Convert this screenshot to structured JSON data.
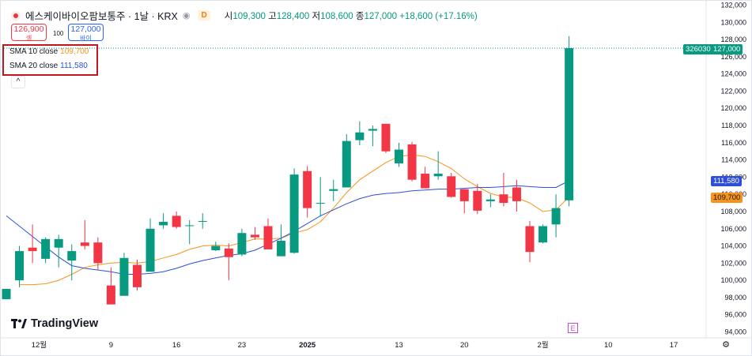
{
  "header": {
    "symbol": "에스케이바이오팜보통주 · 1날 · KRX",
    "eye_icon": "eye-icon",
    "badge": "D",
    "ohlc": {
      "open_label": "시",
      "open": "109,300",
      "high_label": "고",
      "high": "128,400",
      "low_label": "저",
      "low": "108,600",
      "close_label": "종",
      "close": "127,000",
      "change": "+18,600 (+17.16%)"
    }
  },
  "trade": {
    "sell_price": "126,900",
    "sell_label": "셀",
    "spread": "100",
    "buy_price": "127,000",
    "buy_label": "바이"
  },
  "legend": {
    "sma10_label": "SMA 10 close",
    "sma10_value": "109,700",
    "sma20_label": "SMA 20 close",
    "sma20_value": "111,580",
    "collapse_icon": "chevron-up-icon",
    "collapse_glyph": "^"
  },
  "price_tags": {
    "last": "127,000",
    "volume_id": "326030",
    "sma20": "111,580",
    "sma10": "109,700"
  },
  "watermark": {
    "text": "TradingView"
  },
  "earnings_marker": "E",
  "colors": {
    "up": "#089981",
    "down": "#f23645",
    "sma10": "#f7931a",
    "sma20": "#2d4fd9"
  },
  "chart_data": {
    "type": "candlestick",
    "ylim": [
      94000,
      132000
    ],
    "yticks": [
      94000,
      96000,
      98000,
      100000,
      102000,
      104000,
      106000,
      108000,
      110000,
      112000,
      114000,
      116000,
      118000,
      120000,
      122000,
      124000,
      126000,
      128000,
      130000,
      132000
    ],
    "ytick_labels": [
      "94,000",
      "96,000",
      "98,000",
      "100,000",
      "102,000",
      "104,000",
      "106,000",
      "108,000",
      "110,000",
      "112,000",
      "114,000",
      "116,000",
      "118,000",
      "120,000",
      "122,000",
      "124,000",
      "126,000",
      "128,000",
      "130,000",
      "132,000"
    ],
    "xlim_index": [
      0,
      55.5
    ],
    "xticks": [
      {
        "i": 2.5,
        "label": "12월"
      },
      {
        "i": 8,
        "label": "9"
      },
      {
        "i": 13,
        "label": "16"
      },
      {
        "i": 18,
        "label": "23"
      },
      {
        "i": 23,
        "label": "2025"
      },
      {
        "i": 30,
        "label": "13"
      },
      {
        "i": 35,
        "label": "20"
      },
      {
        "i": 41,
        "label": "2월"
      },
      {
        "i": 46,
        "label": "10"
      },
      {
        "i": 51,
        "label": "17"
      }
    ],
    "last_price": 127000,
    "candles": [
      {
        "o": 97800,
        "h": 99000,
        "l": 97800,
        "c": 99000
      },
      {
        "o": 100000,
        "h": 104000,
        "l": 99200,
        "c": 103400
      },
      {
        "o": 103800,
        "h": 106500,
        "l": 102000,
        "c": 103400
      },
      {
        "o": 102500,
        "h": 105000,
        "l": 102000,
        "c": 104800
      },
      {
        "o": 103800,
        "h": 105300,
        "l": 101500,
        "c": 104800
      },
      {
        "o": 102300,
        "h": 104200,
        "l": 100000,
        "c": 103400
      },
      {
        "o": 104400,
        "h": 107000,
        "l": 103600,
        "c": 104000
      },
      {
        "o": 104400,
        "h": 105000,
        "l": 101200,
        "c": 102000
      },
      {
        "o": 99400,
        "h": 101500,
        "l": 97200,
        "c": 97200
      },
      {
        "o": 98200,
        "h": 103200,
        "l": 98200,
        "c": 102600
      },
      {
        "o": 101800,
        "h": 102400,
        "l": 98800,
        "c": 99200
      },
      {
        "o": 101000,
        "h": 107200,
        "l": 101000,
        "c": 106000
      },
      {
        "o": 106400,
        "h": 107800,
        "l": 106000,
        "c": 106800
      },
      {
        "o": 107500,
        "h": 108000,
        "l": 106000,
        "c": 106200
      },
      {
        "o": 106400,
        "h": 107000,
        "l": 104200,
        "c": 106400
      },
      {
        "o": 106900,
        "h": 107800,
        "l": 106000,
        "c": 106900
      },
      {
        "o": 103500,
        "h": 104500,
        "l": 103400,
        "c": 104000
      },
      {
        "o": 103700,
        "h": 104300,
        "l": 100000,
        "c": 102700
      },
      {
        "o": 103000,
        "h": 106000,
        "l": 102800,
        "c": 105500
      },
      {
        "o": 105300,
        "h": 106200,
        "l": 104700,
        "c": 105000
      },
      {
        "o": 106300,
        "h": 107200,
        "l": 103600,
        "c": 103600
      },
      {
        "o": 102800,
        "h": 106500,
        "l": 102800,
        "c": 104600
      },
      {
        "o": 103200,
        "h": 113000,
        "l": 103100,
        "c": 112300
      },
      {
        "o": 112700,
        "h": 113300,
        "l": 107300,
        "c": 108400
      },
      {
        "o": 109000,
        "h": 112000,
        "l": 107400,
        "c": 109000
      },
      {
        "o": 110400,
        "h": 111700,
        "l": 109200,
        "c": 110600
      },
      {
        "o": 110800,
        "h": 117000,
        "l": 110800,
        "c": 116200
      },
      {
        "o": 116300,
        "h": 118500,
        "l": 115700,
        "c": 117200
      },
      {
        "o": 117400,
        "h": 118000,
        "l": 115600,
        "c": 117600
      },
      {
        "o": 118200,
        "h": 118200,
        "l": 114800,
        "c": 115000
      },
      {
        "o": 113600,
        "h": 116000,
        "l": 113200,
        "c": 115200
      },
      {
        "o": 115800,
        "h": 116100,
        "l": 111500,
        "c": 111700
      },
      {
        "o": 112400,
        "h": 113200,
        "l": 110700,
        "c": 110700
      },
      {
        "o": 112100,
        "h": 115000,
        "l": 111700,
        "c": 112400
      },
      {
        "o": 112100,
        "h": 112500,
        "l": 109600,
        "c": 109700
      },
      {
        "o": 110600,
        "h": 110600,
        "l": 107800,
        "c": 109200
      },
      {
        "o": 110400,
        "h": 111200,
        "l": 107700,
        "c": 108100
      },
      {
        "o": 109200,
        "h": 110000,
        "l": 108500,
        "c": 109400
      },
      {
        "o": 110000,
        "h": 112500,
        "l": 108600,
        "c": 109000
      },
      {
        "o": 110800,
        "h": 111700,
        "l": 108000,
        "c": 109200
      },
      {
        "o": 106300,
        "h": 106900,
        "l": 102100,
        "c": 103300
      },
      {
        "o": 104400,
        "h": 106500,
        "l": 104300,
        "c": 106300
      },
      {
        "o": 106500,
        "h": 110000,
        "l": 105000,
        "c": 108400
      },
      {
        "o": 109300,
        "h": 128400,
        "l": 108600,
        "c": 127000
      }
    ],
    "series": [
      {
        "name": "SMA 10 close",
        "values": [
          null,
          99500,
          99500,
          99600,
          100000,
          100700,
          101500,
          101800,
          102000,
          102100,
          102000,
          102200,
          102600,
          103000,
          103600,
          104000,
          104100,
          104000,
          104400,
          104800,
          104800,
          104900,
          105500,
          105900,
          106800,
          108400,
          110200,
          111700,
          112700,
          113700,
          114400,
          114600,
          114400,
          113800,
          113000,
          111800,
          110900,
          110100,
          109700,
          109600,
          109000,
          108000,
          108200,
          109700
        ]
      },
      {
        "name": "SMA 20 close",
        "values": [
          107500,
          106300,
          105100,
          103900,
          102700,
          101700,
          101400,
          101200,
          101000,
          100700,
          100700,
          100800,
          101000,
          101400,
          101900,
          102300,
          102600,
          102900,
          103100,
          103500,
          104200,
          104900,
          105700,
          106600,
          107500,
          108200,
          108900,
          109500,
          109900,
          110100,
          110200,
          110400,
          110500,
          110600,
          110600,
          110700,
          110800,
          110800,
          110900,
          111000,
          110900,
          110800,
          110800,
          111580
        ]
      }
    ],
    "title": "에스케이바이오팜보통주 · 1날 · KRX"
  }
}
